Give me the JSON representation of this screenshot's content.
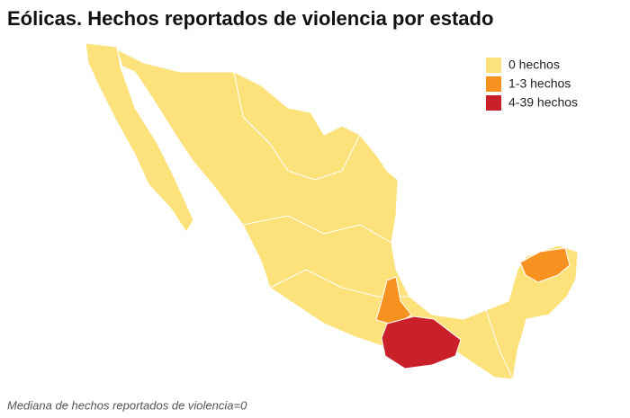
{
  "title": "Eólicas. Hechos reportados de violencia por estado",
  "legend": [
    {
      "label": "0 hechos",
      "color": "#fde27c"
    },
    {
      "label": "1-3 hechos",
      "color": "#f7911f"
    },
    {
      "label": "4-39 hechos",
      "color": "#c9202a"
    }
  ],
  "note": "Mediana de hechos reportados de violencia=0"
}
